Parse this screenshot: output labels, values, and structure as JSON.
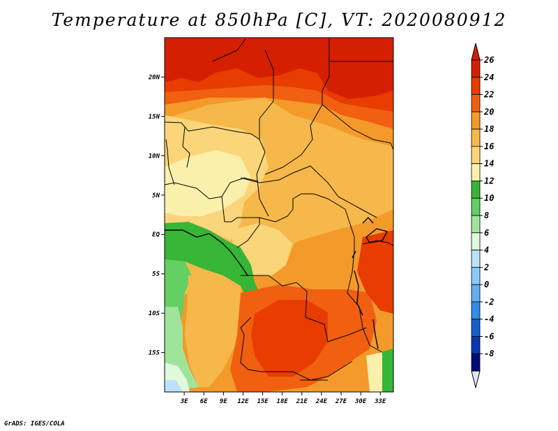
{
  "title": "Temperature at 850hPa [C], VT: 2020080912",
  "footer": "GrADS: IGES/COLA",
  "map": {
    "lon_range": [
      0,
      35
    ],
    "lat_range": [
      -20,
      25
    ],
    "lat_ticks": [
      {
        "value": 20,
        "label": "20N"
      },
      {
        "value": 15,
        "label": "15N"
      },
      {
        "value": 10,
        "label": "10N"
      },
      {
        "value": 5,
        "label": "5N"
      },
      {
        "value": 0,
        "label": "EQ"
      },
      {
        "value": -5,
        "label": "5S"
      },
      {
        "value": -10,
        "label": "10S"
      },
      {
        "value": -15,
        "label": "15S"
      }
    ],
    "lon_ticks": [
      {
        "value": 3,
        "label": "3E"
      },
      {
        "value": 6,
        "label": "6E"
      },
      {
        "value": 9,
        "label": "9E"
      },
      {
        "value": 12,
        "label": "12E"
      },
      {
        "value": 15,
        "label": "15E"
      },
      {
        "value": 18,
        "label": "18E"
      },
      {
        "value": 21,
        "label": "21E"
      },
      {
        "value": 24,
        "label": "24E"
      },
      {
        "value": 27,
        "label": "27E"
      },
      {
        "value": 30,
        "label": "30E"
      },
      {
        "value": 33,
        "label": "33E"
      }
    ]
  },
  "colorbar": {
    "levels": [
      "26",
      "24",
      "22",
      "20",
      "18",
      "16",
      "14",
      "12",
      "10",
      "8",
      "6",
      "4",
      "2",
      "0",
      "-2",
      "-4",
      "-6",
      "-8"
    ],
    "colors": [
      "#d42000",
      "#e83c00",
      "#f06010",
      "#f39a2b",
      "#f6b84a",
      "#fad57a",
      "#fbf0ab",
      "#37b537",
      "#64d063",
      "#a0e49b",
      "#e0f8dc",
      "#bde1f9",
      "#8ccaf5",
      "#63aef0",
      "#2f8ee8",
      "#1560cc",
      "#0a38b4",
      "#050a78"
    ],
    "top_arrow_color": "#d42000",
    "bottom_arrow_color": "#e3e3ff"
  },
  "zones": {
    "c26": "#d42000",
    "c24": "#e83c00",
    "c22": "#f06010",
    "c20": "#f39a2b",
    "c18": "#f6b84a",
    "c16": "#fad57a",
    "c14": "#fbf0ab",
    "c12": "#37b537",
    "c10": "#64d063",
    "c8": "#a0e49b",
    "c6": "#e0f8dc",
    "c4": "#bde1f9"
  }
}
